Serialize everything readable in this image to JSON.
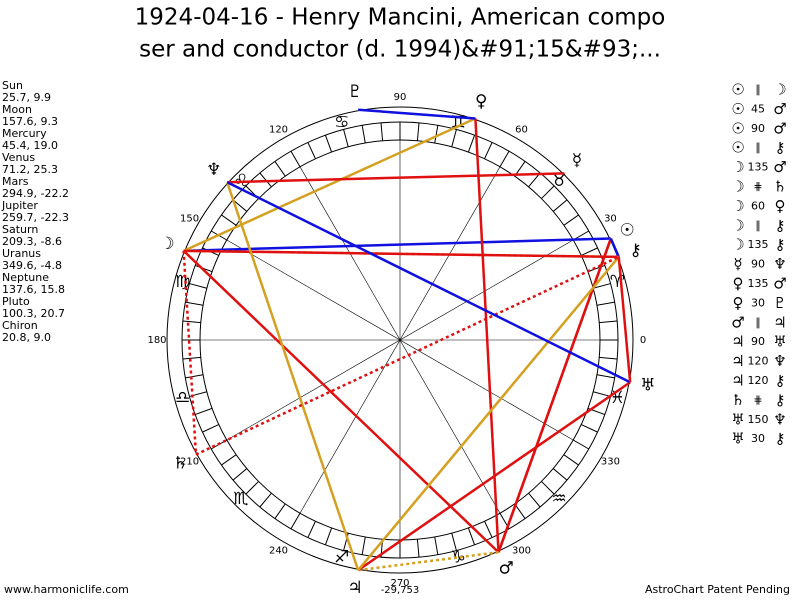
{
  "header": {
    "title_lines": [
      "1924-04-16 - Henry Mancini, American compo",
      "ser and conductor (d. 1994)&#91;15&#93;..."
    ]
  },
  "planets": [
    {
      "name": "Sun",
      "glyph": "☉",
      "coords": "25.7, 9.9",
      "longitude": 25.7
    },
    {
      "name": "Moon",
      "glyph": "☽",
      "coords": "157.6, 9.3",
      "longitude": 157.6
    },
    {
      "name": "Mercury",
      "glyph": "☿",
      "coords": "45.4, 19.0",
      "longitude": 45.4
    },
    {
      "name": "Venus",
      "glyph": "♀",
      "coords": "71.2, 25.3",
      "longitude": 71.2
    },
    {
      "name": "Mars",
      "glyph": "♂",
      "coords": "294.9, -22.2",
      "longitude": 294.9
    },
    {
      "name": "Jupiter",
      "glyph": "♃",
      "coords": "259.7, -22.3",
      "longitude": 259.7
    },
    {
      "name": "Saturn",
      "glyph": "♄",
      "coords": "209.3, -8.6",
      "longitude": 209.3
    },
    {
      "name": "Uranus",
      "glyph": "♅",
      "coords": "349.6, -4.8",
      "longitude": 349.6
    },
    {
      "name": "Neptune",
      "glyph": "♆",
      "coords": "137.6, 15.8",
      "longitude": 137.6
    },
    {
      "name": "Pluto",
      "glyph": "♇",
      "coords": "100.3, 20.7",
      "longitude": 100.3
    },
    {
      "name": "Chiron",
      "glyph": "⚷",
      "coords": "20.8, 9.0",
      "longitude": 20.8
    }
  ],
  "zodiac": [
    "♈",
    "♉",
    "♊",
    "♋",
    "♌",
    "♍",
    "♎",
    "♏",
    "♐",
    "♑",
    "♒",
    "♓"
  ],
  "degree_labels": [
    0,
    30,
    60,
    90,
    120,
    150,
    180,
    210,
    240,
    270,
    300,
    330
  ],
  "aspects": [
    {
      "p1": "☉",
      "aspect": "∥",
      "p2": "☽",
      "color": "#1010e0",
      "dashed": false
    },
    {
      "p1": "☉",
      "aspect": "45",
      "p2": "♂",
      "color": "#e01010",
      "dashed": false
    },
    {
      "p1": "☉",
      "aspect": "90",
      "p2": "♂",
      "color": "#e01010",
      "dashed": false
    },
    {
      "p1": "☉",
      "aspect": "∥",
      "p2": "⚷",
      "color": "#1010e0",
      "dashed": false
    },
    {
      "p1": "☽",
      "aspect": "135",
      "p2": "♂",
      "color": "#e01010",
      "dashed": false
    },
    {
      "p1": "☽",
      "aspect": "⋕",
      "p2": "♄",
      "color": "#e01010",
      "dashed": true
    },
    {
      "p1": "☽",
      "aspect": "60",
      "p2": "♀",
      "color": "#d4a020",
      "dashed": false
    },
    {
      "p1": "☽",
      "aspect": "∥",
      "p2": "⚷",
      "color": "#d4a020",
      "dashed": true
    },
    {
      "p1": "☽",
      "aspect": "135",
      "p2": "⚷",
      "color": "#e01010",
      "dashed": false
    },
    {
      "p1": "☿",
      "aspect": "90",
      "p2": "♆",
      "color": "#e01010",
      "dashed": false
    },
    {
      "p1": "♀",
      "aspect": "135",
      "p2": "♂",
      "color": "#e01010",
      "dashed": false
    },
    {
      "p1": "♀",
      "aspect": "30",
      "p2": "♇",
      "color": "#1010e0",
      "dashed": false
    },
    {
      "p1": "♂",
      "aspect": "∥",
      "p2": "♃",
      "color": "#d4a020",
      "dashed": true
    },
    {
      "p1": "♃",
      "aspect": "90",
      "p2": "♅",
      "color": "#e01010",
      "dashed": false
    },
    {
      "p1": "♃",
      "aspect": "120",
      "p2": "♆",
      "color": "#d4a020",
      "dashed": false
    },
    {
      "p1": "♃",
      "aspect": "120",
      "p2": "⚷",
      "color": "#d4a020",
      "dashed": false
    },
    {
      "p1": "♄",
      "aspect": "⋕",
      "p2": "⚷",
      "color": "#e01010",
      "dashed": true
    },
    {
      "p1": "♅",
      "aspect": "150",
      "p2": "♆",
      "color": "#1010e0",
      "dashed": false
    },
    {
      "p1": "♅",
      "aspect": "30",
      "p2": "⚷",
      "color": "#e01010",
      "dashed": false
    }
  ],
  "bottom_value": "-29,753",
  "footer": {
    "left": "www.harmoniclife.com",
    "right": "AstroChart Patent Pending"
  }
}
